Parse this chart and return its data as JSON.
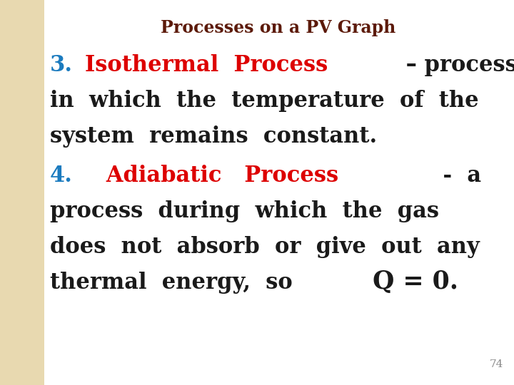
{
  "title": "Processes on a PV Graph",
  "title_color": "#5C1A0A",
  "title_fontsize": 17,
  "bg_color": "#FFFFFF",
  "left_strip_color": "#E8D9B0",
  "page_number": "74",
  "page_number_color": "#888888",
  "line1_num": "3.",
  "line1_num_color": "#1B7BBF",
  "line1_highlighted": "Isothermal  Process",
  "line1_highlighted_color": "#DD0000",
  "line1_rest": " – process",
  "line1_rest_color": "#1A1A1A",
  "line2": "in  which  the  temperature  of  the",
  "line2_color": "#1A1A1A",
  "line3": "system  remains  constant.",
  "line3_color": "#1A1A1A",
  "line4_num": "4.",
  "line4_num_color": "#1B7BBF",
  "line4_highlighted": "   Adiabatic   Process",
  "line4_highlighted_color": "#DD0000",
  "line4_rest": "    -  a",
  "line4_rest_color": "#1A1A1A",
  "line5": "process  during  which  the  gas",
  "line5_color": "#1A1A1A",
  "line6": "does  not  absorb  or  give  out  any",
  "line6_color": "#1A1A1A",
  "line7_normal": "thermal  energy,  so ",
  "line7_normal_color": "#1A1A1A",
  "line7_bold": "Q = 0.",
  "line7_bold_color": "#1A1A1A",
  "fontsize_body": 19,
  "fontsize_large": 22
}
